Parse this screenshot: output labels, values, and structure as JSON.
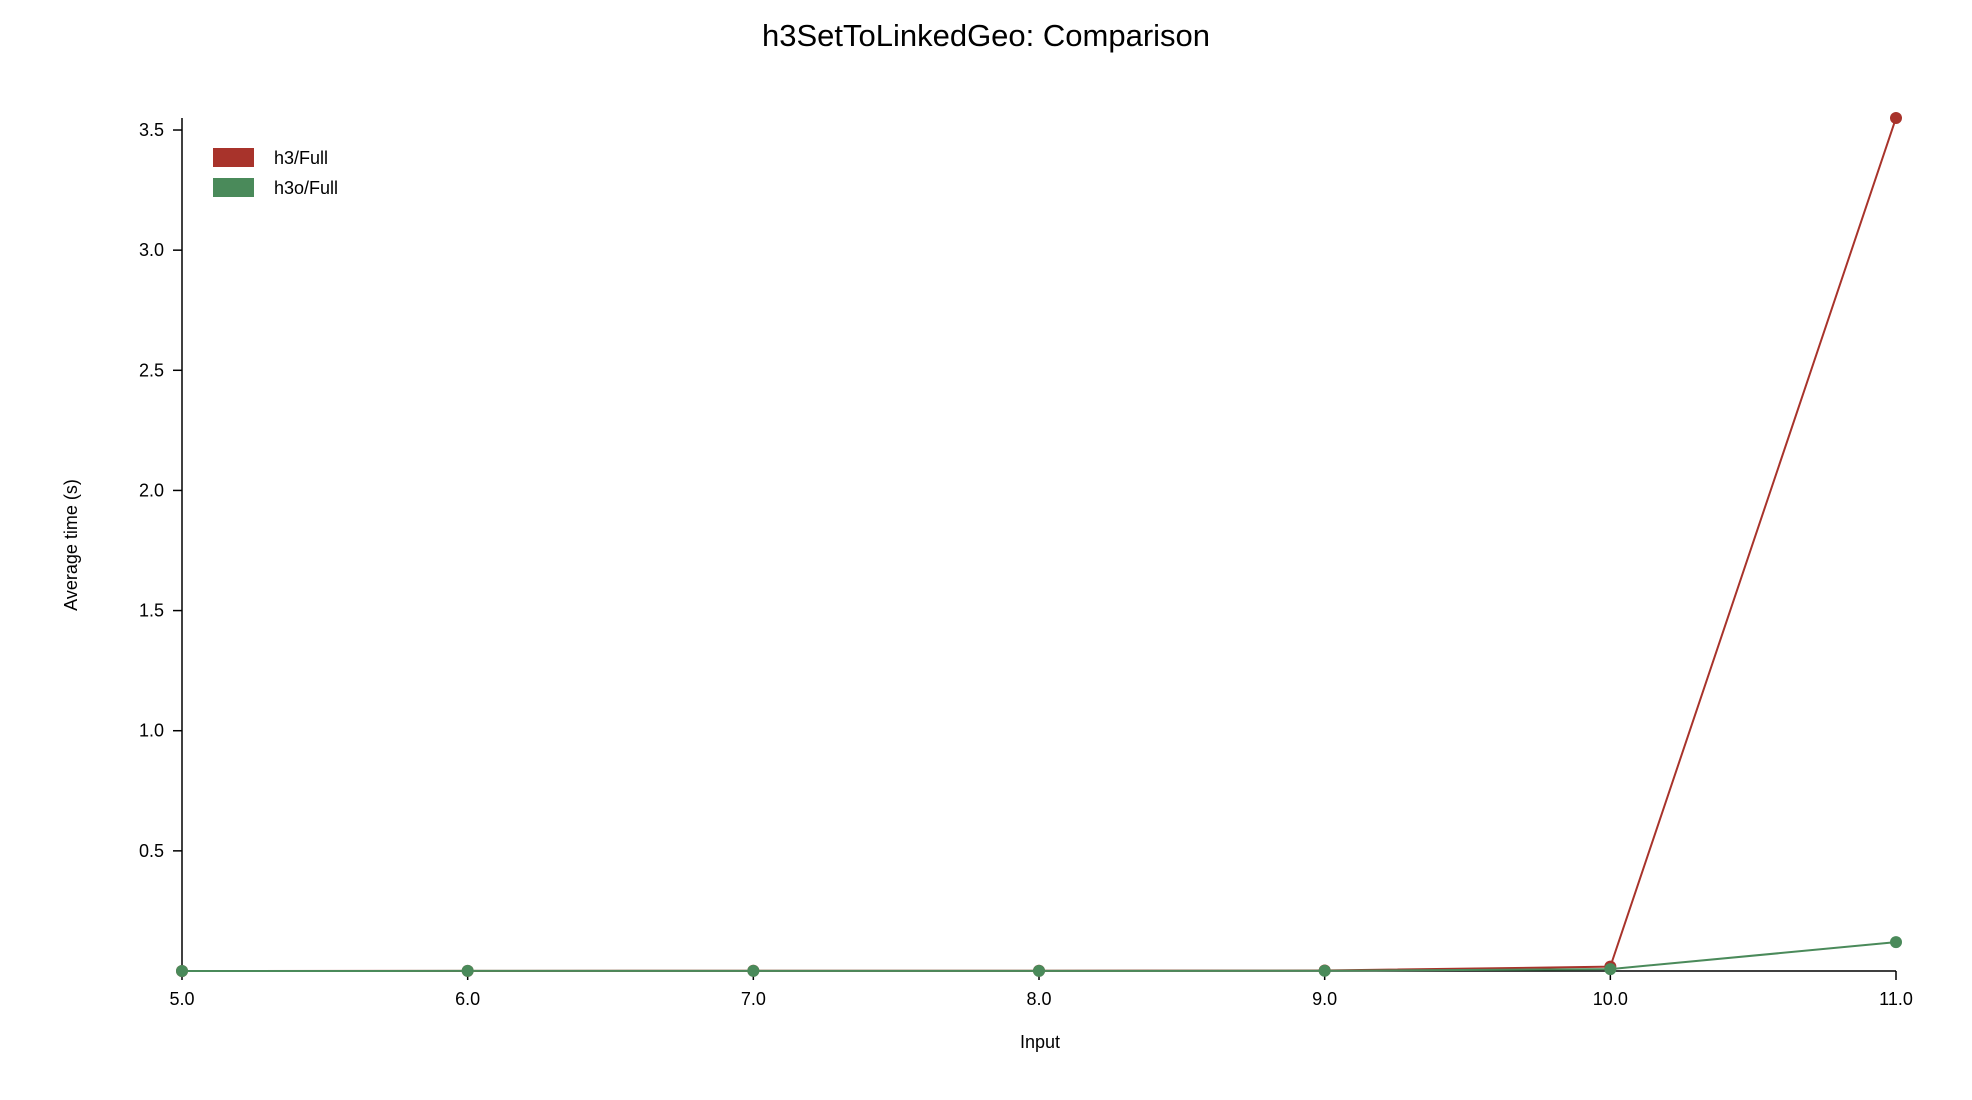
{
  "chart_data": {
    "type": "line",
    "title": "h3SetToLinkedGeo: Comparison",
    "xlabel": "Input",
    "ylabel": "Average time (s)",
    "x": [
      5.0,
      6.0,
      7.0,
      8.0,
      9.0,
      10.0,
      11.0
    ],
    "x_tick_labels": [
      "5.0",
      "6.0",
      "7.0",
      "8.0",
      "9.0",
      "10.0",
      "11.0"
    ],
    "xlim": [
      5.0,
      11.0
    ],
    "y_ticks": [
      0.5,
      1.0,
      1.5,
      2.0,
      2.5,
      3.0,
      3.5
    ],
    "y_tick_labels": [
      "0.5",
      "1.0",
      "1.5",
      "2.0",
      "2.5",
      "3.0",
      "3.5"
    ],
    "ylim": [
      0,
      3.55
    ],
    "grid": false,
    "legend_position": "top-left",
    "series": [
      {
        "name": "h3/Full",
        "color": "#a8332b",
        "values": [
          0.0,
          0.0005,
          0.001,
          0.001,
          0.002,
          0.018,
          3.55
        ]
      },
      {
        "name": "h3o/Full",
        "color": "#4a8a5a",
        "values": [
          0.0,
          0.0003,
          0.0005,
          0.0005,
          0.001,
          0.008,
          0.12
        ]
      }
    ]
  }
}
